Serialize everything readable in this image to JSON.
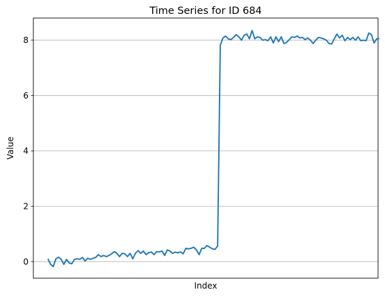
{
  "chart_data": {
    "type": "line",
    "title": "Time Series for ID 684",
    "xlabel": "Index",
    "ylabel": "Value",
    "ylim": [
      -0.6,
      8.8
    ],
    "xlim": [
      -5.5,
      124.5
    ],
    "yticks": [
      0,
      2,
      4,
      6,
      8
    ],
    "ytick_labels": [
      "0",
      "2",
      "4",
      "6",
      "8"
    ],
    "grid": "y",
    "series": [
      {
        "color": "#1f77b4",
        "values": [
          0.1,
          -0.1,
          -0.18,
          0.1,
          0.16,
          0.08,
          -0.1,
          0.08,
          -0.05,
          -0.08,
          0.08,
          0.1,
          0.08,
          0.15,
          0.02,
          0.12,
          0.08,
          0.12,
          0.15,
          0.25,
          0.18,
          0.22,
          0.18,
          0.22,
          0.28,
          0.36,
          0.3,
          0.18,
          0.3,
          0.28,
          0.18,
          0.3,
          0.1,
          0.3,
          0.4,
          0.3,
          0.38,
          0.25,
          0.32,
          0.35,
          0.25,
          0.36,
          0.35,
          0.38,
          0.22,
          0.42,
          0.38,
          0.3,
          0.34,
          0.32,
          0.35,
          0.28,
          0.48,
          0.46,
          0.48,
          0.52,
          0.42,
          0.25,
          0.48,
          0.48,
          0.58,
          0.52,
          0.46,
          0.44,
          0.56,
          7.82,
          8.08,
          8.15,
          8.05,
          8.02,
          8.1,
          8.2,
          8.12,
          8.0,
          8.18,
          8.22,
          8.05,
          8.35,
          8.05,
          8.12,
          8.1,
          8.0,
          8.02,
          7.98,
          8.12,
          7.9,
          8.12,
          7.95,
          8.12,
          7.88,
          7.92,
          8.02,
          8.12,
          8.1,
          8.15,
          8.08,
          8.1,
          8.02,
          8.08,
          8.0,
          7.88,
          8.0,
          8.1,
          8.08,
          8.05,
          8.0,
          7.88,
          7.86,
          8.05,
          8.22,
          8.08,
          8.18,
          7.98,
          8.1,
          8.02,
          8.1,
          8.0,
          8.12,
          7.98,
          8.0,
          7.98,
          8.26,
          8.2,
          7.9,
          8.05,
          8.06
        ]
      }
    ]
  }
}
